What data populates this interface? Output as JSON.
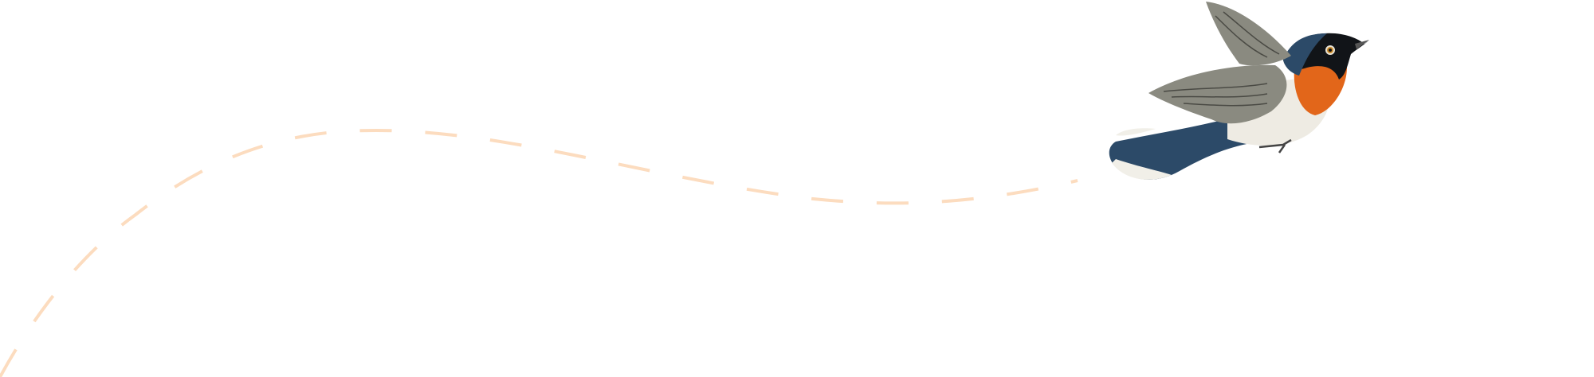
{
  "illustration": {
    "subject": "bird-in-flight",
    "path_color": "#fcdcbf",
    "colors": {
      "back": "#2c4a68",
      "throat": "#e2661a",
      "belly": "#eeebe3",
      "wing": "#8a8a80",
      "tail_tip": "#f1efe8",
      "head": "#111418"
    }
  }
}
